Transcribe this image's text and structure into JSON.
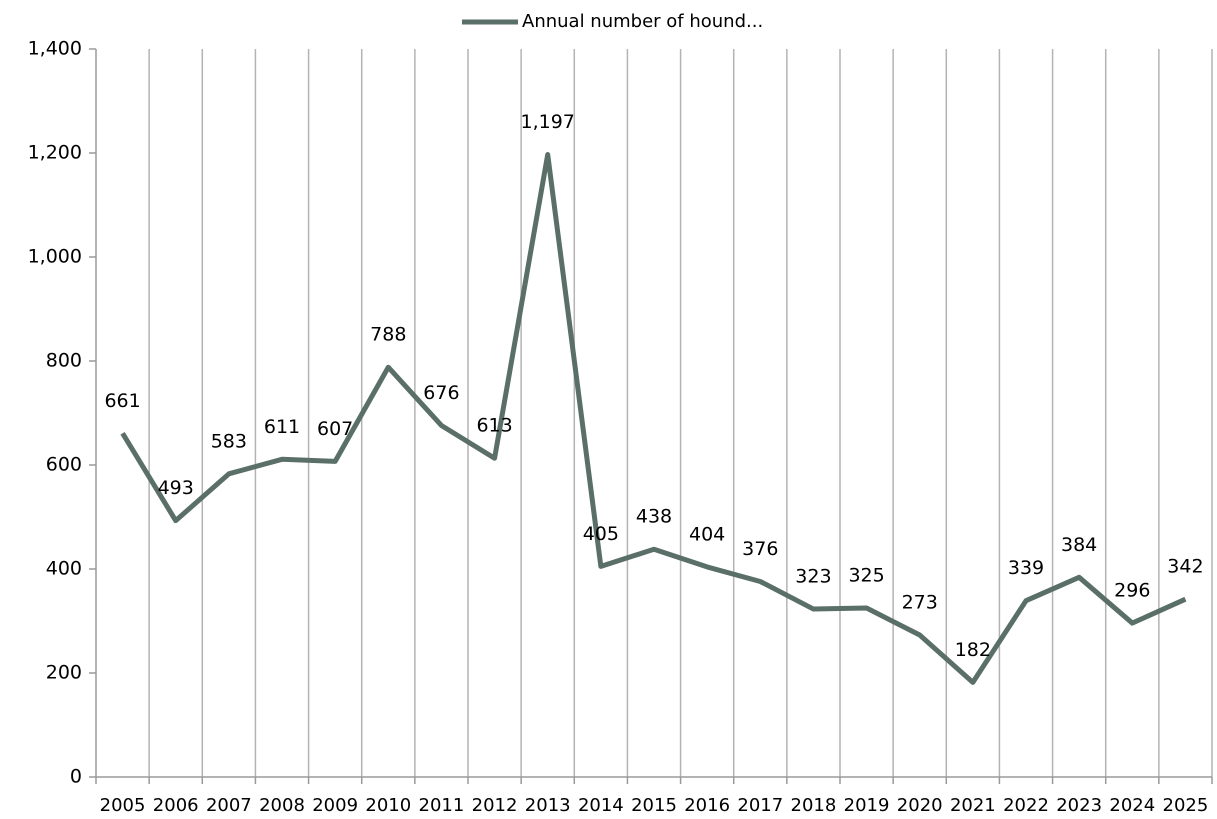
{
  "chart_data": {
    "type": "line",
    "categories": [
      "2005",
      "2006",
      "2007",
      "2008",
      "2009",
      "2010",
      "2011",
      "2012",
      "2013",
      "2014",
      "2015",
      "2016",
      "2017",
      "2018",
      "2019",
      "2020",
      "2021",
      "2022",
      "2023",
      "2024",
      "2025"
    ],
    "series": [
      {
        "name": "Annual number of hound...",
        "color": "#5b6f69",
        "values": [
          661,
          493,
          583,
          611,
          607,
          788,
          676,
          613,
          1197,
          405,
          438,
          404,
          376,
          323,
          325,
          273,
          182,
          339,
          384,
          296,
          342
        ],
        "value_labels": [
          "661",
          "493",
          "583",
          "611",
          "607",
          "788",
          "676",
          "613",
          "1,197",
          "405",
          "438",
          "404",
          "376",
          "323",
          "325",
          "273",
          "182",
          "339",
          "384",
          "296",
          "342"
        ]
      }
    ],
    "ylim": [
      0,
      1400
    ],
    "yticks": [
      0,
      200,
      400,
      600,
      800,
      {
        "value": 1000,
        "label": "1,000"
      },
      {
        "value": 1200,
        "label": "1,200"
      },
      {
        "value": 1400,
        "label": "1,400"
      }
    ],
    "grid": true,
    "legend": "top"
  }
}
